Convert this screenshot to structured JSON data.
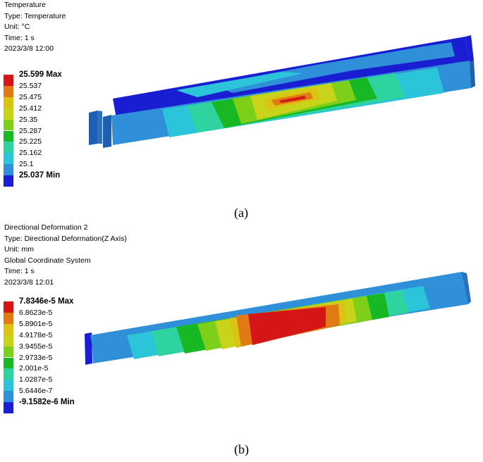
{
  "panel_a": {
    "header": [
      "Temperature",
      "Type: Temperature",
      "Unit: °C",
      "Time: 1 s",
      "2023/3/8 12:00"
    ],
    "legend": [
      {
        "label": "25.599 Max",
        "color": "#d51616"
      },
      {
        "label": "25.537",
        "color": "#e27a14"
      },
      {
        "label": "25.475",
        "color": "#dbc314"
      },
      {
        "label": "25.412",
        "color": "#c8d41a"
      },
      {
        "label": "25.35",
        "color": "#7dcf1a"
      },
      {
        "label": "25.287",
        "color": "#18b825"
      },
      {
        "label": "25.225",
        "color": "#2fd3a0"
      },
      {
        "label": "25.162",
        "color": "#2bc4d8"
      },
      {
        "label": "25.1",
        "color": "#2f8fd8"
      },
      {
        "label": "25.037 Min",
        "color": "#1a1ed2"
      }
    ],
    "caption": "(a)"
  },
  "panel_b": {
    "header": [
      "Directional Deformation 2",
      "Type: Directional Deformation(Z Axis)",
      "Unit: mm",
      "Global Coordinate System",
      "Time: 1 s",
      "2023/3/8 12:01"
    ],
    "legend": [
      {
        "label": "7.8346e-5 Max",
        "color": "#d51616"
      },
      {
        "label": "6.8623e-5",
        "color": "#e27a14"
      },
      {
        "label": "5.8901e-5",
        "color": "#dbc314"
      },
      {
        "label": "4.9178e-5",
        "color": "#c8d41a"
      },
      {
        "label": "3.9455e-5",
        "color": "#7dcf1a"
      },
      {
        "label": "2.9733e-5",
        "color": "#18b825"
      },
      {
        "label": "2.001e-5",
        "color": "#2fd3a0"
      },
      {
        "label": "1.0287e-5",
        "color": "#2bc4d8"
      },
      {
        "label": "5.6446e-7",
        "color": "#2f8fd8"
      },
      {
        "label": "-9.1582e-6 Min",
        "color": "#1a1ed2"
      }
    ],
    "caption": "(b)"
  }
}
